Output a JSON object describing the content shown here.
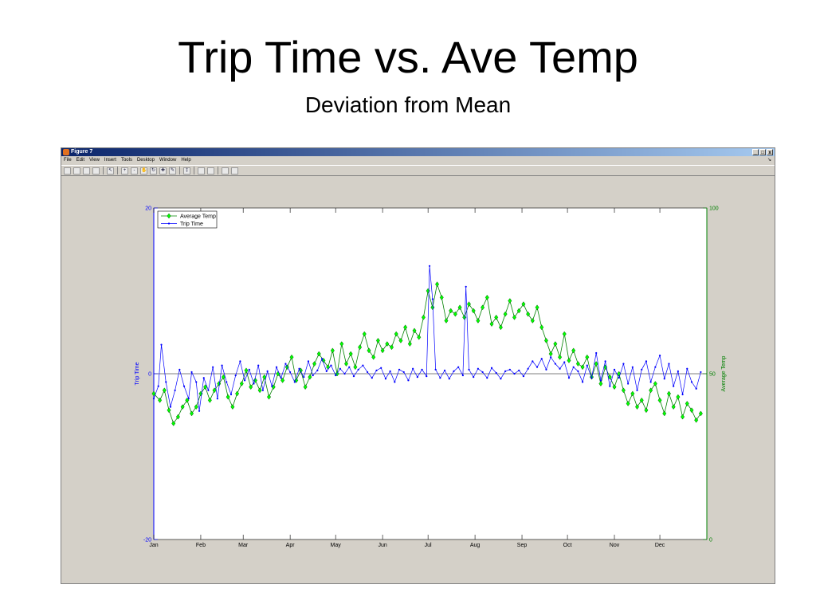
{
  "slide": {
    "title": "Trip Time vs. Ave Temp",
    "subtitle": "Deviation from Mean"
  },
  "window": {
    "title": "Figure 7",
    "controls": [
      "_",
      "□",
      "x"
    ],
    "menu": [
      "File",
      "Edit",
      "View",
      "Insert",
      "Tools",
      "Desktop",
      "Window",
      "Help"
    ],
    "toolbar_icons": [
      "new-icon",
      "open-icon",
      "save-icon",
      "print-icon",
      "|",
      "pointer-icon",
      "|",
      "zoom-in-icon",
      "zoom-out-icon",
      "pan-icon",
      "rotate-icon",
      "data-cursor-icon",
      "brush-icon",
      "|",
      "link-icon",
      "|",
      "colorbar-icon",
      "legend-icon",
      "|",
      "hide-tools-icon",
      "show-tools-icon"
    ]
  },
  "colors": {
    "trip_time": "#0000ff",
    "average_temp": "#008000",
    "average_temp_marker": "#00ff00",
    "window_bg": "#d4d0c8"
  },
  "chart_data": {
    "type": "line",
    "xaxis": {
      "ticks": [
        "Jan",
        "Feb",
        "Mar",
        "Apr",
        "May",
        "Jun",
        "Jul",
        "Aug",
        "Sep",
        "Oct",
        "Nov",
        "Dec"
      ],
      "tick_days": [
        1,
        32,
        60,
        91,
        121,
        152,
        182,
        213,
        244,
        274,
        305,
        335
      ],
      "range_days": [
        1,
        366
      ]
    },
    "y_left": {
      "label": "Trip Time",
      "ylim": [
        -20,
        20
      ],
      "ticks": [
        -20,
        0,
        20
      ]
    },
    "y_right": {
      "label": "Average Temp",
      "ylim": [
        0,
        100
      ],
      "ticks": [
        0,
        50,
        100
      ]
    },
    "zero_line": 0,
    "legend": {
      "placement": "top-left",
      "entries": [
        "Average Temp",
        "Trip Time"
      ]
    },
    "series": [
      {
        "name": "Average Temp",
        "axis": "right",
        "marker": "diamond",
        "points": [
          [
            1,
            44
          ],
          [
            5,
            42
          ],
          [
            8,
            45
          ],
          [
            11,
            39
          ],
          [
            14,
            35
          ],
          [
            17,
            37
          ],
          [
            20,
            40
          ],
          [
            23,
            42
          ],
          [
            26,
            38
          ],
          [
            29,
            40
          ],
          [
            32,
            44
          ],
          [
            35,
            46
          ],
          [
            38,
            42
          ],
          [
            41,
            45
          ],
          [
            44,
            47
          ],
          [
            47,
            49
          ],
          [
            50,
            43
          ],
          [
            53,
            40
          ],
          [
            56,
            44
          ],
          [
            59,
            47
          ],
          [
            62,
            51
          ],
          [
            65,
            46
          ],
          [
            68,
            48
          ],
          [
            71,
            45
          ],
          [
            74,
            49
          ],
          [
            77,
            43
          ],
          [
            80,
            46
          ],
          [
            83,
            50
          ],
          [
            86,
            48
          ],
          [
            89,
            52
          ],
          [
            92,
            55
          ],
          [
            95,
            48
          ],
          [
            98,
            51
          ],
          [
            101,
            46
          ],
          [
            104,
            49
          ],
          [
            107,
            53
          ],
          [
            110,
            56
          ],
          [
            113,
            54
          ],
          [
            116,
            52
          ],
          [
            119,
            57
          ],
          [
            122,
            50
          ],
          [
            125,
            59
          ],
          [
            128,
            53
          ],
          [
            131,
            56
          ],
          [
            134,
            52
          ],
          [
            137,
            58
          ],
          [
            140,
            62
          ],
          [
            143,
            57
          ],
          [
            146,
            55
          ],
          [
            149,
            60
          ],
          [
            152,
            57
          ],
          [
            155,
            59
          ],
          [
            158,
            58
          ],
          [
            161,
            62
          ],
          [
            164,
            60
          ],
          [
            167,
            64
          ],
          [
            170,
            59
          ],
          [
            173,
            63
          ],
          [
            176,
            61
          ],
          [
            179,
            67
          ],
          [
            182,
            75
          ],
          [
            185,
            70
          ],
          [
            188,
            77
          ],
          [
            191,
            73
          ],
          [
            194,
            66
          ],
          [
            197,
            69
          ],
          [
            200,
            68
          ],
          [
            203,
            70
          ],
          [
            206,
            67
          ],
          [
            209,
            71
          ],
          [
            212,
            69
          ],
          [
            215,
            66
          ],
          [
            218,
            70
          ],
          [
            221,
            73
          ],
          [
            224,
            65
          ],
          [
            227,
            67
          ],
          [
            230,
            64
          ],
          [
            233,
            68
          ],
          [
            236,
            72
          ],
          [
            239,
            67
          ],
          [
            242,
            69
          ],
          [
            245,
            71
          ],
          [
            248,
            68
          ],
          [
            251,
            66
          ],
          [
            254,
            70
          ],
          [
            257,
            64
          ],
          [
            260,
            60
          ],
          [
            263,
            56
          ],
          [
            266,
            59
          ],
          [
            269,
            55
          ],
          [
            272,
            62
          ],
          [
            275,
            54
          ],
          [
            278,
            57
          ],
          [
            281,
            53
          ],
          [
            284,
            52
          ],
          [
            287,
            55
          ],
          [
            290,
            49
          ],
          [
            293,
            53
          ],
          [
            296,
            47
          ],
          [
            299,
            52
          ],
          [
            302,
            49
          ],
          [
            305,
            46
          ],
          [
            308,
            50
          ],
          [
            311,
            45
          ],
          [
            314,
            41
          ],
          [
            317,
            44
          ],
          [
            320,
            40
          ],
          [
            323,
            42
          ],
          [
            326,
            39
          ],
          [
            329,
            45
          ],
          [
            332,
            47
          ],
          [
            335,
            42
          ],
          [
            338,
            38
          ],
          [
            341,
            44
          ],
          [
            344,
            40
          ],
          [
            347,
            43
          ],
          [
            350,
            37
          ],
          [
            353,
            41
          ],
          [
            356,
            39
          ],
          [
            359,
            36
          ],
          [
            362,
            38
          ]
        ]
      },
      {
        "name": "Trip Time",
        "axis": "left",
        "marker": "dot",
        "points": [
          [
            1,
            -3
          ],
          [
            4,
            -1.5
          ],
          [
            6,
            3.5
          ],
          [
            9,
            -1
          ],
          [
            12,
            -4
          ],
          [
            15,
            -2
          ],
          [
            18,
            0.5
          ],
          [
            21,
            -1.5
          ],
          [
            24,
            -3
          ],
          [
            26,
            0.2
          ],
          [
            29,
            -1
          ],
          [
            31,
            -4.5
          ],
          [
            34,
            -0.5
          ],
          [
            37,
            -2
          ],
          [
            40,
            0.8
          ],
          [
            43,
            -3
          ],
          [
            46,
            1
          ],
          [
            49,
            -1
          ],
          [
            52,
            -2.5
          ],
          [
            55,
            -0.2
          ],
          [
            58,
            1.5
          ],
          [
            61,
            -0.8
          ],
          [
            64,
            0.5
          ],
          [
            67,
            -1.2
          ],
          [
            70,
            1
          ],
          [
            73,
            -2
          ],
          [
            76,
            0.3
          ],
          [
            79,
            -1.5
          ],
          [
            82,
            0.8
          ],
          [
            85,
            -0.5
          ],
          [
            88,
            1.2
          ],
          [
            91,
            0.2
          ],
          [
            94,
            -1
          ],
          [
            97,
            0.6
          ],
          [
            100,
            -0.4
          ],
          [
            103,
            1.5
          ],
          [
            106,
            -0.2
          ],
          [
            109,
            0.4
          ],
          [
            112,
            1.8
          ],
          [
            115,
            0.3
          ],
          [
            118,
            1
          ],
          [
            121,
            -0.2
          ],
          [
            124,
            0.6
          ],
          [
            127,
            0
          ],
          [
            130,
            0.8
          ],
          [
            133,
            -0.3
          ],
          [
            136,
            0.5
          ],
          [
            139,
            1
          ],
          [
            142,
            0.2
          ],
          [
            145,
            -0.5
          ],
          [
            148,
            0.4
          ],
          [
            151,
            0.7
          ],
          [
            154,
            -0.6
          ],
          [
            157,
            0.3
          ],
          [
            160,
            -1
          ],
          [
            163,
            0.5
          ],
          [
            166,
            0.2
          ],
          [
            169,
            -0.8
          ],
          [
            172,
            0.6
          ],
          [
            175,
            -0.4
          ],
          [
            178,
            0.5
          ],
          [
            181,
            -0.3
          ],
          [
            183,
            13
          ],
          [
            185,
            9
          ],
          [
            187,
            0.5
          ],
          [
            190,
            -0.5
          ],
          [
            193,
            0.4
          ],
          [
            196,
            -0.6
          ],
          [
            199,
            0.3
          ],
          [
            202,
            0.8
          ],
          [
            205,
            -0.2
          ],
          [
            207,
            10.5
          ],
          [
            209,
            0.5
          ],
          [
            212,
            -0.4
          ],
          [
            215,
            0.6
          ],
          [
            218,
            0.2
          ],
          [
            221,
            -0.5
          ],
          [
            224,
            0.7
          ],
          [
            227,
            0.1
          ],
          [
            230,
            -0.6
          ],
          [
            233,
            0.3
          ],
          [
            236,
            0.5
          ],
          [
            239,
            0
          ],
          [
            242,
            0.4
          ],
          [
            245,
            -0.3
          ],
          [
            248,
            0.6
          ],
          [
            251,
            1.5
          ],
          [
            254,
            0.8
          ],
          [
            257,
            1.8
          ],
          [
            260,
            0.5
          ],
          [
            263,
            2
          ],
          [
            266,
            1.2
          ],
          [
            269,
            0.6
          ],
          [
            272,
            1.4
          ],
          [
            275,
            -0.5
          ],
          [
            278,
            0.8
          ],
          [
            281,
            0.3
          ],
          [
            284,
            -1
          ],
          [
            287,
            1
          ],
          [
            290,
            -0.5
          ],
          [
            293,
            2.5
          ],
          [
            296,
            -0.8
          ],
          [
            299,
            1.5
          ],
          [
            302,
            -1.5
          ],
          [
            305,
            0.5
          ],
          [
            308,
            -0.5
          ],
          [
            311,
            1.2
          ],
          [
            314,
            -1.2
          ],
          [
            317,
            0.8
          ],
          [
            320,
            -2
          ],
          [
            323,
            0.5
          ],
          [
            326,
            1.5
          ],
          [
            329,
            -1
          ],
          [
            332,
            0.8
          ],
          [
            335,
            2.2
          ],
          [
            338,
            -0.6
          ],
          [
            341,
            1.2
          ],
          [
            344,
            -1.5
          ],
          [
            347,
            0.3
          ],
          [
            350,
            -2.5
          ],
          [
            353,
            0.6
          ],
          [
            356,
            -1
          ],
          [
            359,
            -1.8
          ],
          [
            362,
            0.2
          ]
        ]
      }
    ]
  }
}
